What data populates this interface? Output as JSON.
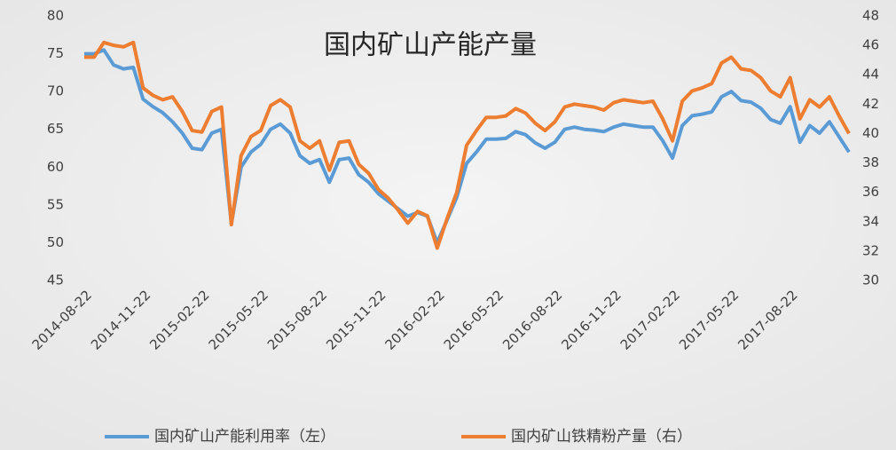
{
  "chart_data": {
    "type": "line",
    "title": "国内矿山产能产量",
    "categories": [
      "2014-08-22",
      null,
      null,
      null,
      null,
      null,
      "2014-11-22",
      null,
      null,
      null,
      null,
      null,
      "2015-02-22",
      null,
      null,
      null,
      null,
      null,
      "2015-05-22",
      null,
      null,
      null,
      null,
      null,
      "2015-08-22",
      null,
      null,
      null,
      null,
      null,
      "2015-11-22",
      null,
      null,
      null,
      null,
      null,
      "2016-02-22",
      null,
      null,
      null,
      null,
      null,
      "2016-05-22",
      null,
      null,
      null,
      null,
      null,
      "2016-08-22",
      null,
      null,
      null,
      null,
      null,
      "2016-11-22",
      null,
      null,
      null,
      null,
      null,
      "2017-02-22",
      null,
      null,
      null,
      null,
      null,
      "2017-05-22",
      null,
      null,
      null,
      null,
      null,
      "2017-08-22",
      null,
      null,
      null,
      null,
      null,
      null
    ],
    "series": [
      {
        "name": "国内矿山产能利用率（左）",
        "color": "#5b9bd5",
        "axis": "y",
        "values": [
          75,
          75,
          75.5,
          73.5,
          73,
          73.2,
          69,
          68,
          67.2,
          66,
          64.5,
          62.5,
          62.3,
          64.5,
          65,
          52.5,
          60,
          62,
          63,
          65,
          65.7,
          64.5,
          61.5,
          60.5,
          61,
          58,
          61,
          61.2,
          59,
          58,
          56.5,
          55.5,
          54.5,
          53.5,
          54,
          53.5,
          50,
          53,
          56,
          60.5,
          62,
          63.7,
          63.7,
          63.8,
          64.7,
          64.3,
          63.2,
          62.5,
          63.3,
          65,
          65.3,
          65,
          64.9,
          64.7,
          65.3,
          65.7,
          65.5,
          65.3,
          65.3,
          63.5,
          61.2,
          65.5,
          66.8,
          67,
          67.3,
          69.3,
          70,
          68.8,
          68.6,
          67.8,
          66.3,
          65.8,
          68,
          63.3,
          65.5,
          64.5,
          66,
          64,
          62
        ]
      },
      {
        "name": "国内矿山铁精粉产量（右）",
        "color": "#ed7d31",
        "axis": "y2",
        "values": [
          45.2,
          45.2,
          46.2,
          46,
          45.9,
          46.2,
          43.1,
          42.6,
          42.3,
          42.5,
          41.5,
          40.2,
          40.1,
          41.5,
          41.8,
          33.8,
          38.5,
          39.8,
          40.2,
          41.9,
          42.3,
          41.8,
          39.5,
          39,
          39.5,
          37.5,
          39.4,
          39.5,
          37.9,
          37.3,
          36.2,
          35.6,
          34.8,
          33.9,
          34.7,
          34.4,
          32.2,
          34.2,
          36,
          39.2,
          40.2,
          41.1,
          41.1,
          41.2,
          41.7,
          41.4,
          40.7,
          40.2,
          40.8,
          41.8,
          42,
          41.9,
          41.8,
          41.6,
          42.1,
          42.3,
          42.2,
          42.1,
          42.2,
          41,
          39.5,
          42.2,
          42.9,
          43.1,
          43.4,
          44.8,
          45.2,
          44.4,
          44.3,
          43.8,
          42.9,
          42.5,
          43.8,
          41,
          42.3,
          41.8,
          42.5,
          41.2,
          40
        ]
      }
    ],
    "ylim": [
      45,
      80
    ],
    "yticks": [
      45,
      50,
      55,
      60,
      65,
      70,
      75,
      80
    ],
    "y2lim": [
      30,
      48
    ],
    "y2ticks": [
      30,
      32,
      34,
      36,
      38,
      40,
      42,
      44,
      46,
      48
    ],
    "legend": "bottom"
  }
}
